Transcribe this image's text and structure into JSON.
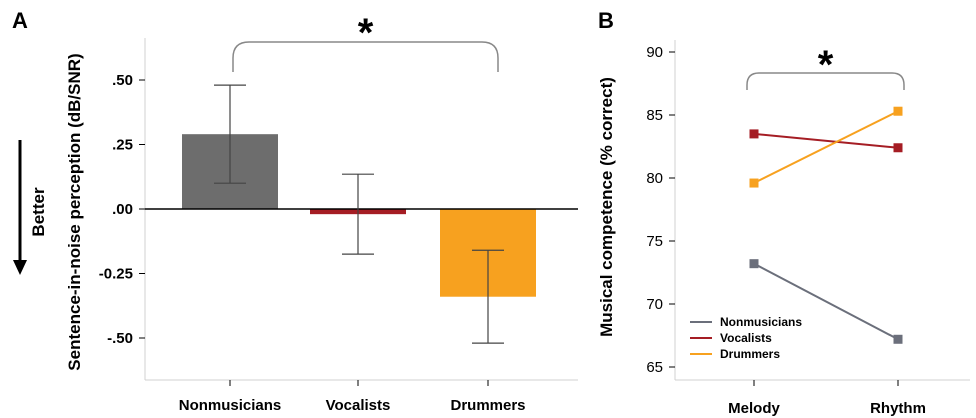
{
  "chart_data": [
    {
      "type": "bar",
      "panel": "A",
      "ylabel": "Sentence-in-noise perception (dB/SNR)",
      "direction_label": "Better",
      "categories": [
        "Nonmusicians",
        "Vocalists",
        "Drummers"
      ],
      "values": [
        0.29,
        -0.02,
        -0.34
      ],
      "error": [
        0.19,
        0.155,
        0.18
      ],
      "colors": [
        "#6d6d6d",
        "#a51d24",
        "#f7a11f"
      ],
      "yticks": [
        0.5,
        0.25,
        0.0,
        -0.25,
        -0.5
      ],
      "ytick_labels": [
        ".50",
        ".25",
        ".00",
        "-0.25",
        "-.50"
      ],
      "ylim": [
        -0.66,
        0.66
      ],
      "significance": {
        "from": "Nonmusicians",
        "to": "Drummers",
        "label": "*"
      }
    },
    {
      "type": "line",
      "panel": "B",
      "ylabel": "Musical competence (% correct)",
      "categories": [
        "Melody",
        "Rhythm"
      ],
      "series": [
        {
          "name": "Nonmusicians",
          "values": [
            73.2,
            67.2
          ],
          "color": "#6b6f7b"
        },
        {
          "name": "Vocalists",
          "values": [
            83.5,
            82.4
          ],
          "color": "#a51d24"
        },
        {
          "name": "Drummers",
          "values": [
            79.6,
            85.3
          ],
          "color": "#f7a11f"
        }
      ],
      "yticks": [
        65,
        70,
        75,
        80,
        85,
        90
      ],
      "ylim": [
        64,
        91
      ],
      "legend": "bottom-left",
      "significance": {
        "from": "Melody",
        "to": "Rhythm",
        "label": "*"
      }
    }
  ]
}
